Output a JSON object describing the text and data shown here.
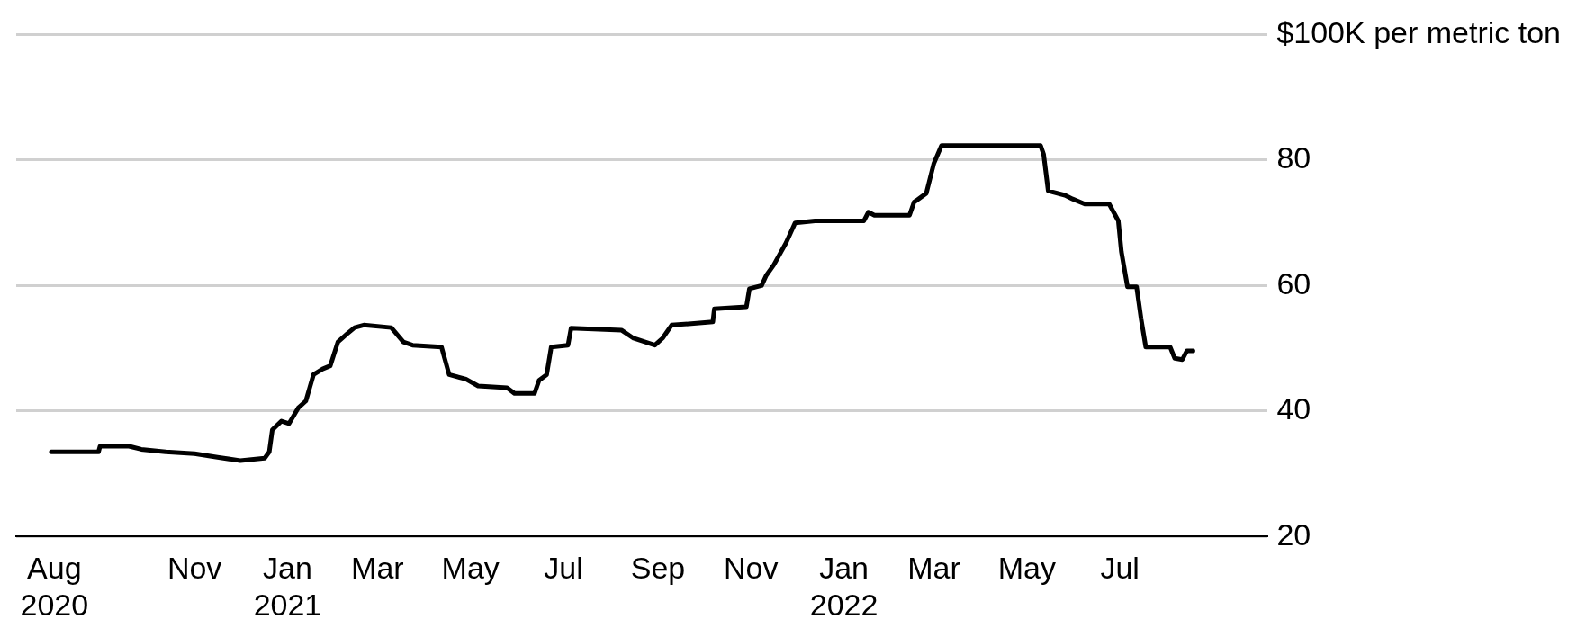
{
  "chart_data": {
    "type": "line",
    "color": "#000000",
    "x": [
      "2020-07-30",
      "2020-08-30",
      "2020-08-31",
      "2020-09-19",
      "2020-09-27",
      "2020-10-13",
      "2020-11-01",
      "2020-11-17",
      "2020-12-01",
      "2020-12-17",
      "2020-12-20",
      "2020-12-22",
      "2020-12-28",
      "2021-01-02",
      "2021-01-08",
      "2021-01-13",
      "2021-01-18",
      "2021-01-24",
      "2021-01-29",
      "2021-02-03",
      "2021-02-09",
      "2021-02-14",
      "2021-02-20",
      "2021-03-10",
      "2021-03-18",
      "2021-03-24",
      "2021-04-12",
      "2021-04-17",
      "2021-04-28",
      "2021-05-06",
      "2021-05-25",
      "2021-05-30",
      "2021-06-12",
      "2021-06-15",
      "2021-06-20",
      "2021-06-23",
      "2021-07-04",
      "2021-07-06",
      "2021-08-08",
      "2021-08-16",
      "2021-08-30",
      "2021-09-04",
      "2021-09-10",
      "2021-10-07",
      "2021-10-08",
      "2021-10-29",
      "2021-10-31",
      "2021-11-08",
      "2021-11-11",
      "2021-11-16",
      "2021-11-24",
      "2021-11-30",
      "2021-12-13",
      "2022-01-14",
      "2022-01-17",
      "2022-01-21",
      "2022-02-13",
      "2022-02-16",
      "2022-02-24",
      "2022-03-01",
      "2022-03-06",
      "2022-05-10",
      "2022-05-12",
      "2022-05-15",
      "2022-05-26",
      "2022-05-31",
      "2022-06-08",
      "2022-06-24",
      "2022-06-30",
      "2022-07-02",
      "2022-07-06",
      "2022-07-12",
      "2022-07-15",
      "2022-07-18",
      "2022-08-03",
      "2022-08-06",
      "2022-08-11",
      "2022-08-14",
      "2022-08-18"
    ],
    "values": [
      33.5,
      33.5,
      34.4,
      34.4,
      33.9,
      33.5,
      33.2,
      32.6,
      32.1,
      32.5,
      33.5,
      37,
      38.4,
      38,
      40.5,
      41.6,
      45.8,
      46.7,
      47.2,
      51,
      52.3,
      53.3,
      53.7,
      53.3,
      51,
      50.5,
      50.2,
      45.8,
      45.1,
      44,
      43.7,
      42.8,
      42.8,
      44.9,
      45.8,
      50.2,
      50.5,
      53.2,
      52.9,
      51.6,
      50.5,
      51.6,
      53.7,
      54.2,
      56.3,
      56.6,
      59.5,
      60,
      61.6,
      63.3,
      66.8,
      70,
      70.3,
      70.3,
      71.7,
      71.2,
      71.2,
      73.3,
      74.7,
      79.5,
      82.3,
      82.3,
      80.9,
      75.1,
      74.4,
      73.8,
      73,
      73,
      70.3,
      65.4,
      59.8,
      59.8,
      54.6,
      50.2,
      50.2,
      48.4,
      48.2,
      49.6,
      49.6
    ],
    "xlim": [
      "2020-07-07",
      "2022-10-06"
    ],
    "xticks": [
      {
        "value": "2020-08-01",
        "label": "Aug\n2020"
      },
      {
        "value": "2020-11-01",
        "label": "Nov"
      },
      {
        "value": "2021-01-01",
        "label": "Jan\n2021"
      },
      {
        "value": "2021-03-01",
        "label": "Mar"
      },
      {
        "value": "2021-05-01",
        "label": "May"
      },
      {
        "value": "2021-07-01",
        "label": "Jul"
      },
      {
        "value": "2021-09-01",
        "label": "Sep"
      },
      {
        "value": "2021-11-01",
        "label": "Nov"
      },
      {
        "value": "2022-01-01",
        "label": "Jan\n2022"
      },
      {
        "value": "2022-03-01",
        "label": "Mar"
      },
      {
        "value": "2022-05-01",
        "label": "May"
      },
      {
        "value": "2022-07-01",
        "label": "Jul"
      }
    ],
    "ylim": [
      20,
      100
    ],
    "yticks": [
      20,
      40,
      60,
      80,
      {
        "value": 100,
        "label": "$100K per metric ton"
      }
    ],
    "grid": "y",
    "legend": false,
    "marker": "none",
    "line_style": "solid"
  }
}
